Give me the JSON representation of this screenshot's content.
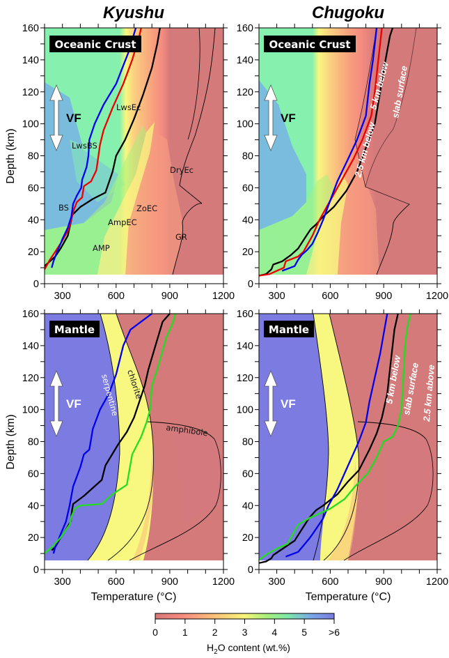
{
  "titles": {
    "left": "Kyushu",
    "right": "Chugoku"
  },
  "axes": {
    "ylabel": "Depth (km)",
    "xlabel": "Temperature (°C)",
    "xticks": [
      300,
      600,
      900,
      1200
    ],
    "xminor": [
      200,
      300,
      400,
      500,
      600,
      700,
      800,
      900,
      1000,
      1100,
      1200
    ],
    "yticks": [
      0,
      20,
      40,
      60,
      80,
      100,
      120,
      140,
      160
    ],
    "yminor": [
      0,
      10,
      20,
      30,
      40,
      50,
      60,
      70,
      80,
      90,
      100,
      110,
      120,
      130,
      140,
      150,
      160
    ],
    "xlim": [
      200,
      1200
    ],
    "ylim": [
      0,
      160
    ]
  },
  "panel_labels": {
    "crust": "Oceanic Crust",
    "mantle": "Mantle"
  },
  "vf_label": "VF",
  "colorbar": {
    "label_main": "H",
    "label_sub": "2",
    "label_rest": "O content (wt.%)",
    "ticks": [
      "0",
      "1",
      "2",
      "3",
      "4",
      "5",
      ">6"
    ],
    "colors": [
      "#d87878",
      "#f58a80",
      "#fbc07a",
      "#f8f57a",
      "#a8f07a",
      "#7de8a8",
      "#7aa8e8",
      "#7a7ae0"
    ]
  },
  "colors": {
    "dry": "#d47a7a",
    "serpentine": "#7b7be2",
    "chlorite": "#f8f880",
    "crust_green": "#86f0ae",
    "crust_blue": "#78b8e0",
    "surface_line": "#000000",
    "below5_line": "#0000ee",
    "below25_line": "#ee0000",
    "above25_line": "#22dd22"
  },
  "chart_data": [
    {
      "type": "line",
      "title": "Kyushu — Oceanic Crust",
      "xlabel": "Temperature (°C)",
      "ylabel": "Depth (km)",
      "xlim": [
        200,
        1200
      ],
      "ylim": [
        0,
        160
      ],
      "y_inverted": false,
      "field_labels": [
        "LwsEc",
        "LwsBS",
        "BS",
        "DryEc",
        "ZoEC",
        "AmpEC",
        "AMP",
        "GR"
      ],
      "series": [
        {
          "name": "slab surface",
          "color": "black",
          "points": [
            [
              200,
              11
            ],
            [
              230,
              14
            ],
            [
              260,
              17
            ],
            [
              290,
              22
            ],
            [
              330,
              30
            ],
            [
              350,
              40
            ],
            [
              355,
              43
            ],
            [
              400,
              48
            ],
            [
              470,
              53
            ],
            [
              540,
              57
            ],
            [
              580,
              70
            ],
            [
              600,
              80
            ],
            [
              650,
              90
            ],
            [
              700,
              103
            ],
            [
              750,
              118
            ],
            [
              800,
              135
            ],
            [
              830,
              150
            ],
            [
              845,
              160
            ]
          ]
        },
        {
          "name": "2.5 km below",
          "color": "red",
          "points": [
            [
              200,
              9
            ],
            [
              230,
              15
            ],
            [
              260,
              20
            ],
            [
              300,
              27
            ],
            [
              330,
              33
            ],
            [
              350,
              40
            ],
            [
              360,
              45
            ],
            [
              380,
              51
            ],
            [
              410,
              54
            ],
            [
              420,
              61
            ],
            [
              460,
              64
            ],
            [
              490,
              71
            ],
            [
              510,
              87
            ],
            [
              530,
              96
            ],
            [
              580,
              110
            ],
            [
              640,
              125
            ],
            [
              690,
              140
            ],
            [
              730,
              155
            ],
            [
              740,
              160
            ]
          ]
        },
        {
          "name": "5 km below",
          "color": "blue",
          "points": [
            [
              240,
              10
            ],
            [
              250,
              14
            ],
            [
              270,
              20
            ],
            [
              290,
              25
            ],
            [
              300,
              28
            ],
            [
              330,
              35
            ],
            [
              350,
              42
            ],
            [
              360,
              50
            ],
            [
              380,
              55
            ],
            [
              405,
              60
            ],
            [
              410,
              65
            ],
            [
              435,
              73
            ],
            [
              445,
              80
            ],
            [
              450,
              90
            ],
            [
              480,
              100
            ],
            [
              530,
              112
            ],
            [
              600,
              125
            ],
            [
              670,
              145
            ],
            [
              710,
              160
            ]
          ]
        }
      ]
    },
    {
      "type": "line",
      "title": "Chugoku — Oceanic Crust",
      "xlabel": "Temperature (°C)",
      "ylabel": "Depth (km)",
      "xlim": [
        200,
        1200
      ],
      "ylim": [
        0,
        160
      ],
      "series_labels": [
        "5 km below",
        "2.5 km below",
        "slab surface"
      ],
      "series": [
        {
          "name": "slab surface",
          "color": "black",
          "points": [
            [
              200,
              5
            ],
            [
              240,
              6
            ],
            [
              270,
              9
            ],
            [
              280,
              12
            ],
            [
              330,
              14
            ],
            [
              380,
              18
            ],
            [
              420,
              22
            ],
            [
              460,
              29
            ],
            [
              490,
              34
            ],
            [
              520,
              37
            ],
            [
              560,
              42
            ],
            [
              620,
              48
            ],
            [
              690,
              58
            ],
            [
              750,
              70
            ],
            [
              800,
              85
            ],
            [
              850,
              100
            ],
            [
              880,
              120
            ],
            [
              910,
              140
            ],
            [
              935,
              155
            ],
            [
              950,
              160
            ]
          ]
        },
        {
          "name": "2.5 km below",
          "color": "red",
          "points": [
            [
              200,
              5
            ],
            [
              260,
              6
            ],
            [
              300,
              8
            ],
            [
              340,
              10
            ],
            [
              350,
              14
            ],
            [
              420,
              17
            ],
            [
              450,
              20
            ],
            [
              500,
              30
            ],
            [
              540,
              40
            ],
            [
              560,
              44
            ],
            [
              600,
              52
            ],
            [
              660,
              64
            ],
            [
              730,
              78
            ],
            [
              780,
              90
            ],
            [
              830,
              105
            ],
            [
              850,
              120
            ],
            [
              870,
              140
            ],
            [
              890,
              160
            ]
          ]
        },
        {
          "name": "5 km below",
          "color": "blue",
          "points": [
            [
              330,
              8
            ],
            [
              400,
              11
            ],
            [
              420,
              15
            ],
            [
              440,
              18
            ],
            [
              470,
              21
            ],
            [
              500,
              25
            ],
            [
              530,
              32
            ],
            [
              560,
              40
            ],
            [
              600,
              52
            ],
            [
              640,
              64
            ],
            [
              700,
              78
            ],
            [
              750,
              90
            ],
            [
              800,
              105
            ],
            [
              820,
              125
            ],
            [
              840,
              140
            ],
            [
              860,
              160
            ]
          ]
        }
      ]
    },
    {
      "type": "line",
      "title": "Kyushu — Mantle",
      "xlabel": "Temperature (°C)",
      "ylabel": "Depth (km)",
      "xlim": [
        200,
        1200
      ],
      "ylim": [
        0,
        160
      ],
      "field_labels": [
        "serpentine",
        "chlorite",
        "amphibole"
      ],
      "series": [
        {
          "name": "slab surface",
          "color": "black",
          "points": [
            [
              240,
              12
            ],
            [
              260,
              14
            ],
            [
              290,
              20
            ],
            [
              320,
              25
            ],
            [
              345,
              30
            ],
            [
              355,
              38
            ],
            [
              360,
              41
            ],
            [
              420,
              46
            ],
            [
              520,
              56
            ],
            [
              540,
              65
            ],
            [
              610,
              78
            ],
            [
              660,
              86
            ],
            [
              700,
              95
            ],
            [
              730,
              105
            ],
            [
              760,
              115
            ],
            [
              780,
              125
            ],
            [
              820,
              140
            ],
            [
              860,
              155
            ],
            [
              900,
              160
            ]
          ]
        },
        {
          "name": "5 km below",
          "color": "blue",
          "points": [
            [
              250,
              10
            ],
            [
              260,
              14
            ],
            [
              290,
              22
            ],
            [
              320,
              30
            ],
            [
              340,
              40
            ],
            [
              360,
              52
            ],
            [
              380,
              58
            ],
            [
              400,
              64
            ],
            [
              420,
              72
            ],
            [
              450,
              75
            ],
            [
              470,
              88
            ],
            [
              510,
              100
            ],
            [
              560,
              110
            ],
            [
              600,
              122
            ],
            [
              640,
              140
            ],
            [
              680,
              150
            ],
            [
              800,
              160
            ]
          ]
        },
        {
          "name": "2.5 km above",
          "color": "green",
          "points": [
            [
              200,
              10
            ],
            [
              250,
              15
            ],
            [
              290,
              20
            ],
            [
              340,
              28
            ],
            [
              350,
              33
            ],
            [
              370,
              38
            ],
            [
              400,
              40
            ],
            [
              520,
              41
            ],
            [
              580,
              47
            ],
            [
              660,
              53
            ],
            [
              690,
              72
            ],
            [
              740,
              83
            ],
            [
              770,
              92
            ],
            [
              790,
              100
            ],
            [
              800,
              115
            ],
            [
              830,
              125
            ],
            [
              880,
              145
            ],
            [
              920,
              155
            ],
            [
              930,
              160
            ]
          ]
        }
      ]
    },
    {
      "type": "line",
      "title": "Chugoku — Mantle",
      "xlabel": "Temperature (°C)",
      "ylabel": "Depth (km)",
      "xlim": [
        200,
        1200
      ],
      "ylim": [
        0,
        160
      ],
      "series_labels": [
        "5 km below",
        "slab surface",
        "2.5 km above"
      ],
      "series": [
        {
          "name": "slab surface",
          "color": "black",
          "points": [
            [
              200,
              4
            ],
            [
              240,
              5
            ],
            [
              270,
              7
            ],
            [
              280,
              9
            ],
            [
              320,
              12
            ],
            [
              360,
              15
            ],
            [
              400,
              18
            ],
            [
              440,
              25
            ],
            [
              480,
              32
            ],
            [
              520,
              37
            ],
            [
              560,
              40
            ],
            [
              640,
              47
            ],
            [
              700,
              55
            ],
            [
              760,
              62
            ],
            [
              820,
              75
            ],
            [
              860,
              85
            ],
            [
              890,
              95
            ],
            [
              920,
              110
            ],
            [
              940,
              130
            ],
            [
              960,
              150
            ],
            [
              980,
              160
            ]
          ]
        },
        {
          "name": "5 km below",
          "color": "blue",
          "points": [
            [
              350,
              8
            ],
            [
              420,
              11
            ],
            [
              450,
              15
            ],
            [
              480,
              19
            ],
            [
              500,
              22
            ],
            [
              530,
              27
            ],
            [
              560,
              32
            ],
            [
              590,
              40
            ],
            [
              640,
              50
            ],
            [
              700,
              65
            ],
            [
              760,
              80
            ],
            [
              800,
              92
            ],
            [
              820,
              105
            ],
            [
              850,
              120
            ],
            [
              880,
              135
            ],
            [
              920,
              160
            ]
          ]
        },
        {
          "name": "2.5 km above",
          "color": "green",
          "points": [
            [
              200,
              6
            ],
            [
              250,
              10
            ],
            [
              300,
              13
            ],
            [
              360,
              16
            ],
            [
              420,
              28
            ],
            [
              480,
              32
            ],
            [
              540,
              35
            ],
            [
              600,
              38
            ],
            [
              680,
              44
            ],
            [
              740,
              52
            ],
            [
              810,
              60
            ],
            [
              860,
              70
            ],
            [
              900,
              80
            ],
            [
              950,
              83
            ],
            [
              980,
              90
            ],
            [
              1000,
              100
            ],
            [
              1010,
              120
            ],
            [
              1020,
              140
            ],
            [
              1030,
              150
            ],
            [
              1050,
              160
            ]
          ]
        }
      ]
    }
  ]
}
